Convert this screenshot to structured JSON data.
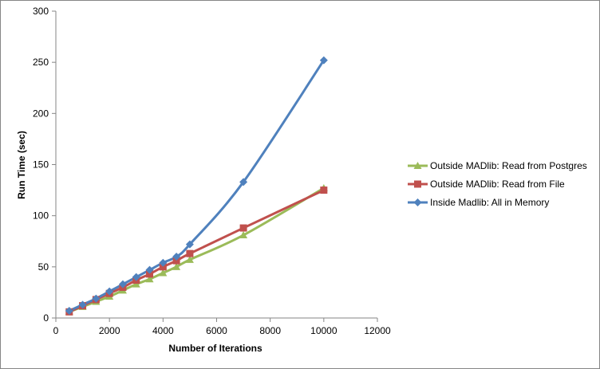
{
  "chart_data": {
    "type": "line",
    "title": "",
    "xlabel": "Number of Iterations",
    "ylabel": "Run Time (sec)",
    "xlim": [
      0,
      12000
    ],
    "ylim": [
      0,
      300
    ],
    "x_ticks": [
      0,
      2000,
      4000,
      6000,
      8000,
      10000,
      12000
    ],
    "y_ticks": [
      0,
      50,
      100,
      150,
      200,
      250,
      300
    ],
    "x_tick_labels": [
      "0",
      "2000",
      "4000",
      "6000",
      "8000",
      "10000",
      "12000"
    ],
    "y_tick_labels": [
      "0",
      "50",
      "100",
      "150",
      "200",
      "250",
      "300"
    ],
    "grid": {
      "horizontal": false,
      "vertical": false
    },
    "legend_position": "right",
    "series": [
      {
        "name": "Outside MADlib: Read from Postgres",
        "color": "#9BBB59",
        "marker": "triangle",
        "smooth": true,
        "x": [
          500,
          1000,
          1500,
          2000,
          2500,
          3000,
          3500,
          4000,
          4500,
          5000,
          7000,
          10000
        ],
        "values": [
          6,
          11,
          16,
          21,
          27,
          33,
          38,
          44,
          50,
          57,
          81,
          127
        ]
      },
      {
        "name": "Outside MADlib: Read from File",
        "color": "#C0504D",
        "marker": "square",
        "smooth": true,
        "x": [
          500,
          1000,
          1500,
          2000,
          2500,
          3000,
          3500,
          4000,
          4500,
          5000,
          7000,
          10000
        ],
        "values": [
          6,
          12,
          18,
          24,
          30,
          37,
          43,
          50,
          56,
          63,
          88,
          125
        ]
      },
      {
        "name": "Inside Madlib: All in Memory",
        "color": "#4F81BD",
        "marker": "diamond",
        "smooth": true,
        "x": [
          500,
          1000,
          1500,
          2000,
          2500,
          3000,
          3500,
          4000,
          4500,
          5000,
          7000,
          10000
        ],
        "values": [
          7,
          13,
          19,
          26,
          33,
          40,
          47,
          54,
          60,
          72,
          133,
          252
        ]
      }
    ]
  }
}
